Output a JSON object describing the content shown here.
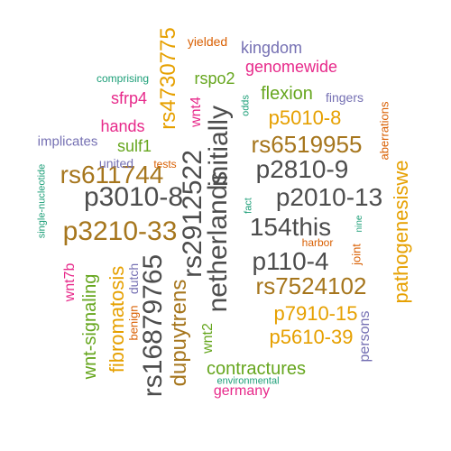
{
  "words": {
    "netherlands": {
      "text": "netherlands",
      "color": "#4d4d4d",
      "rotated": true
    },
    "rs2912522": {
      "text": "rs2912522",
      "color": "#4d4d4d",
      "rotated": true
    },
    "rs16879765": {
      "text": "rs16879765",
      "color": "#4d4d4d",
      "rotated": true
    },
    "initially": {
      "text": "initially",
      "color": "#4d4d4d",
      "rotated": true
    },
    "p3010": {
      "text": "p3010-8",
      "color": "#4d4d4d",
      "rotated": false
    },
    "p3210": {
      "text": "p3210-33",
      "color": "#a6761d",
      "rotated": false
    },
    "rs611744": {
      "text": "rs611744",
      "color": "#a6761d",
      "rotated": false
    },
    "p2010": {
      "text": "p2010-13",
      "color": "#4d4d4d",
      "rotated": false
    },
    "p2810": {
      "text": "p2810-9",
      "color": "#4d4d4d",
      "rotated": false
    },
    "this154": {
      "text": "154this",
      "color": "#4d4d4d",
      "rotated": false
    },
    "p1104": {
      "text": "p110-4",
      "color": "#4d4d4d",
      "rotated": false
    },
    "rs6519955": {
      "text": "rs6519955",
      "color": "#a6761d",
      "rotated": false
    },
    "rs7524102": {
      "text": "rs7524102",
      "color": "#a6761d",
      "rotated": false
    },
    "rs4730775": {
      "text": "rs4730775",
      "color": "#e6a000",
      "rotated": true
    },
    "dupuytrens": {
      "text": "dupuytrens",
      "color": "#a6761d",
      "rotated": true
    },
    "pathogenesiswe": {
      "text": "pathogenesiswe",
      "color": "#e6a000",
      "rotated": true
    },
    "p5010": {
      "text": "p5010-8",
      "color": "#e6a000",
      "rotated": false
    },
    "p7910": {
      "text": "p7910-15",
      "color": "#e6a000",
      "rotated": false
    },
    "p5610": {
      "text": "p5610-39",
      "color": "#e6a000",
      "rotated": false
    },
    "fibromatosis": {
      "text": "fibromatosis",
      "color": "#e6a000",
      "rotated": true
    },
    "wntsignaling": {
      "text": "wnt-signaling",
      "color": "#66a61e",
      "rotated": true
    },
    "contractures": {
      "text": "contractures",
      "color": "#66a61e",
      "rotated": false
    },
    "flexion": {
      "text": "flexion",
      "color": "#66a61e",
      "rotated": false
    },
    "rspo2": {
      "text": "rspo2",
      "color": "#66a61e",
      "rotated": false
    },
    "sulf1": {
      "text": "sulf1",
      "color": "#66a61e",
      "rotated": false
    },
    "hands": {
      "text": "hands",
      "color": "#e7298a",
      "rotated": false
    },
    "sfrp4": {
      "text": "sfrp4",
      "color": "#e7298a",
      "rotated": false
    },
    "genomewide": {
      "text": "genomewide",
      "color": "#e7298a",
      "rotated": false
    },
    "kingdom": {
      "text": "kingdom",
      "color": "#7570b3",
      "rotated": false
    },
    "wnt2": {
      "text": "wnt2",
      "color": "#66a61e",
      "rotated": true
    },
    "germany": {
      "text": "germany",
      "color": "#e7298a",
      "rotated": false
    },
    "wnt4": {
      "text": "wnt4",
      "color": "#e7298a",
      "rotated": true
    },
    "wnt7b": {
      "text": "wnt7b",
      "color": "#e7298a",
      "rotated": true
    },
    "persons": {
      "text": "persons",
      "color": "#7570b3",
      "rotated": true
    },
    "implicates": {
      "text": "implicates",
      "color": "#7570b3",
      "rotated": false
    },
    "yielded": {
      "text": "yielded",
      "color": "#d95f02",
      "rotated": false
    },
    "dutch": {
      "text": "dutch",
      "color": "#7570b3",
      "rotated": true
    },
    "fingers": {
      "text": "fingers",
      "color": "#7570b3",
      "rotated": false
    },
    "united": {
      "text": "united",
      "color": "#7570b3",
      "rotated": false
    },
    "aberrations": {
      "text": "aberrations",
      "color": "#d95f02",
      "rotated": true
    },
    "benign": {
      "text": "benign",
      "color": "#d95f02",
      "rotated": true
    },
    "joint": {
      "text": "joint",
      "color": "#d95f02",
      "rotated": true
    },
    "harbor": {
      "text": "harbor",
      "color": "#d95f02",
      "rotated": false
    },
    "tests": {
      "text": "tests",
      "color": "#d95f02",
      "rotated": false
    },
    "comprising": {
      "text": "comprising",
      "color": "#1b9e77",
      "rotated": false
    },
    "odds": {
      "text": "odds",
      "color": "#1b9e77",
      "rotated": true
    },
    "singlenucleotide": {
      "text": "single-nucleotide",
      "color": "#1b9e77",
      "rotated": true
    },
    "environmental": {
      "text": "environmental",
      "color": "#1b9e77",
      "rotated": false
    },
    "fact": {
      "text": "fact",
      "color": "#1b9e77",
      "rotated": true
    },
    "nine": {
      "text": "nine",
      "color": "#1b9e77",
      "rotated": true
    }
  }
}
